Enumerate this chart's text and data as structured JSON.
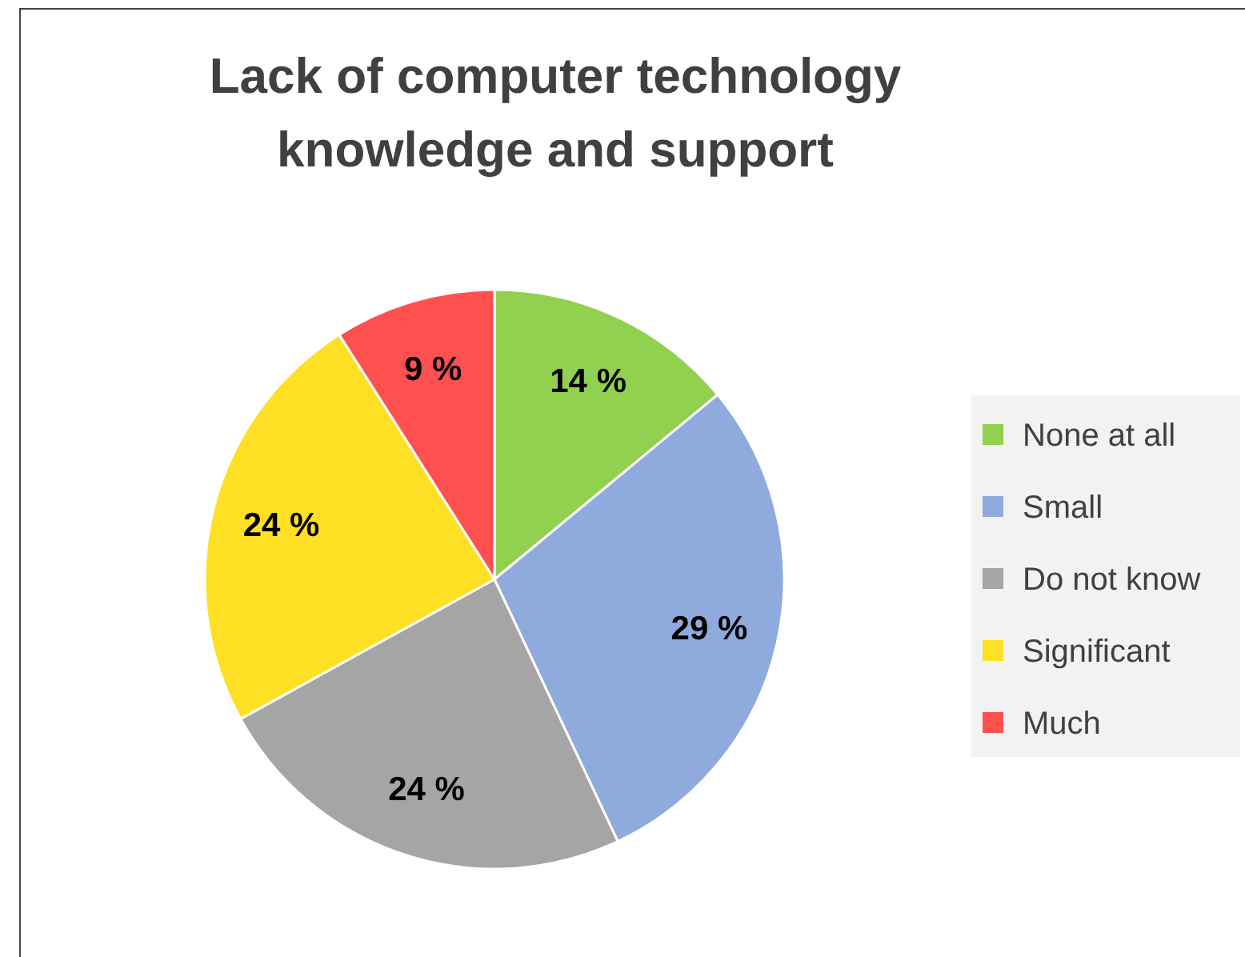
{
  "chart_data": {
    "type": "pie",
    "title": "Lack of computer technology knowledge and support",
    "categories": [
      "None at all",
      "Small",
      "Do not know",
      "Significant",
      "Much"
    ],
    "values": [
      14,
      29,
      24,
      24,
      9
    ],
    "colors": [
      "#92d050",
      "#8faadc",
      "#a5a5a5",
      "#ffe024",
      "#ff5050"
    ],
    "value_labels": [
      "14 %",
      "29 %",
      "24 %",
      "24 %",
      "9 %"
    ],
    "legend": "right"
  }
}
